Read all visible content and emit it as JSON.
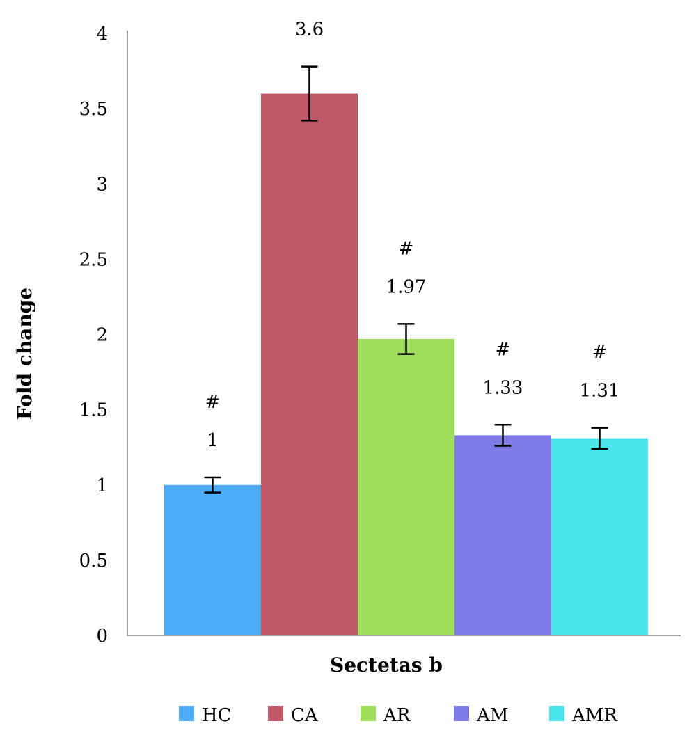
{
  "chart_data": {
    "type": "bar",
    "title": "",
    "xlabel": "Sectetas b",
    "ylabel": "Fold change",
    "ylim": [
      0,
      4
    ],
    "yticks": [
      "0",
      "0.5",
      "1",
      "1.5",
      "2",
      "2.5",
      "3",
      "3.5",
      "4"
    ],
    "grid": false,
    "legend_position": "bottom",
    "series": [
      {
        "name": "HC",
        "value": 1,
        "label": "1",
        "error": 0.05,
        "marker": "#",
        "color": "#4FADF7"
      },
      {
        "name": "CA",
        "value": 3.6,
        "label": "3.6",
        "error": 0.18,
        "marker": "",
        "color": "#C0586A"
      },
      {
        "name": "AR",
        "value": 1.97,
        "label": "1.97",
        "error": 0.1,
        "marker": "#",
        "color": "#A0DF5C"
      },
      {
        "name": "AM",
        "value": 1.33,
        "label": "1.33",
        "error": 0.07,
        "marker": "#",
        "color": "#7E7BE6"
      },
      {
        "name": "AMR",
        "value": 1.31,
        "label": "1.31",
        "error": 0.07,
        "marker": "#",
        "color": "#4AE5EA"
      }
    ]
  }
}
